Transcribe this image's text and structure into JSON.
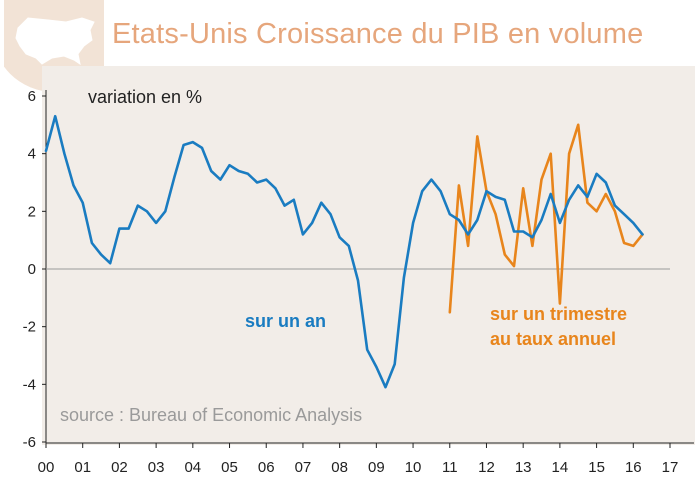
{
  "header": {
    "title": "Etats-Unis Croissance du PIB en volume",
    "title_color": "#E6A67C",
    "badge_icon": "usa-map-icon",
    "badge_color": "#F2E3D6"
  },
  "chart_data": {
    "type": "line",
    "title": "Etats-Unis Croissance du PIB en volume",
    "ylabel": "variation en %",
    "xlabel": "",
    "ylim": [
      -6,
      6
    ],
    "xlim": [
      2000,
      2017
    ],
    "yticks": [
      "6",
      "4",
      "2",
      "0",
      "-2",
      "-4",
      "-6"
    ],
    "ytick_values": [
      6,
      4,
      2,
      0,
      -2,
      -4,
      -6
    ],
    "xticks": [
      "00",
      "01",
      "02",
      "03",
      "04",
      "05",
      "06",
      "07",
      "08",
      "09",
      "10",
      "11",
      "12",
      "13",
      "14",
      "15",
      "16",
      "17"
    ],
    "grid": false,
    "source": "source : Bureau of Economic Analysis",
    "series": [
      {
        "name": "sur un an",
        "color": "#1A7CC1",
        "x": [
          2000.0,
          2000.25,
          2000.5,
          2000.75,
          2001.0,
          2001.25,
          2001.5,
          2001.75,
          2002.0,
          2002.25,
          2002.5,
          2002.75,
          2003.0,
          2003.25,
          2003.5,
          2003.75,
          2004.0,
          2004.25,
          2004.5,
          2004.75,
          2005.0,
          2005.25,
          2005.5,
          2005.75,
          2006.0,
          2006.25,
          2006.5,
          2006.75,
          2007.0,
          2007.25,
          2007.5,
          2007.75,
          2008.0,
          2008.25,
          2008.5,
          2008.75,
          2009.0,
          2009.25,
          2009.5,
          2009.75,
          2010.0,
          2010.25,
          2010.5,
          2010.75,
          2011.0,
          2011.25,
          2011.5,
          2011.75,
          2012.0,
          2012.25,
          2012.5,
          2012.75,
          2013.0,
          2013.25,
          2013.5,
          2013.75,
          2014.0,
          2014.25,
          2014.5,
          2014.75,
          2015.0,
          2015.25,
          2015.5,
          2015.75,
          2016.0,
          2016.25
        ],
        "values": [
          4.1,
          5.3,
          4.0,
          2.9,
          2.3,
          0.9,
          0.5,
          0.2,
          1.4,
          1.4,
          2.2,
          2.0,
          1.6,
          2.0,
          3.2,
          4.3,
          4.4,
          4.2,
          3.4,
          3.1,
          3.6,
          3.4,
          3.3,
          3.0,
          3.1,
          2.8,
          2.2,
          2.4,
          1.2,
          1.6,
          2.3,
          1.9,
          1.1,
          0.8,
          -0.4,
          -2.8,
          -3.4,
          -4.1,
          -3.3,
          -0.3,
          1.6,
          2.7,
          3.1,
          2.7,
          1.9,
          1.7,
          1.2,
          1.7,
          2.7,
          2.5,
          2.4,
          1.3,
          1.3,
          1.1,
          1.7,
          2.6,
          1.6,
          2.4,
          2.9,
          2.5,
          3.3,
          3.0,
          2.2,
          1.9,
          1.6,
          1.2
        ]
      },
      {
        "name": "sur un trimestre au taux annuel",
        "color": "#E8851C",
        "x": [
          2011.0,
          2011.25,
          2011.5,
          2011.75,
          2012.0,
          2012.25,
          2012.5,
          2012.75,
          2013.0,
          2013.25,
          2013.5,
          2013.75,
          2014.0,
          2014.25,
          2014.5,
          2014.75,
          2015.0,
          2015.25,
          2015.5,
          2015.75,
          2016.0,
          2016.25
        ],
        "values": [
          -1.5,
          2.9,
          0.8,
          4.6,
          2.7,
          1.9,
          0.5,
          0.1,
          2.8,
          0.8,
          3.1,
          4.0,
          -1.2,
          4.0,
          5.0,
          2.3,
          2.0,
          2.6,
          2.0,
          0.9,
          0.8,
          1.2
        ]
      }
    ],
    "annotations": [
      {
        "text": "variation en %"
      },
      {
        "text": "sur un an",
        "color": "#1A7CC1"
      },
      {
        "text": "sur un trimestre",
        "color": "#E8851C"
      },
      {
        "text": "au taux annuel",
        "color": "#E8851C"
      }
    ]
  }
}
